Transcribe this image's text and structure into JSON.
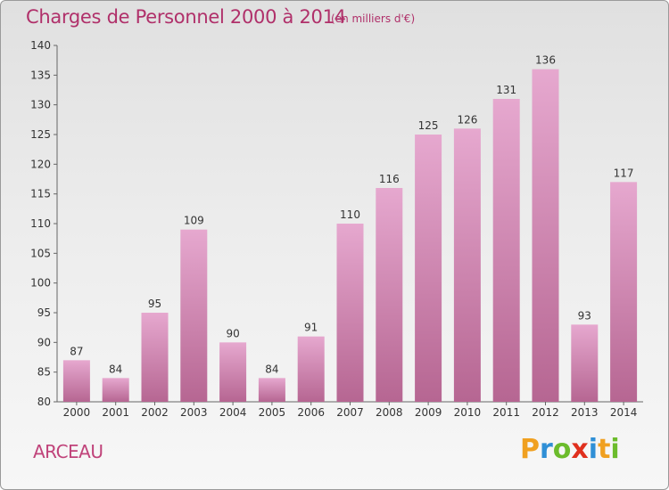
{
  "title": "Charges de Personnel 2000 à 2014",
  "unit_note": "(en milliers d'€)",
  "place": "ARCEAU",
  "logo": "Proxiti",
  "colors": {
    "title": "#b0306a",
    "bar_top": "#e6a8cf",
    "bar_bottom": "#b66692"
  },
  "chart_data": {
    "type": "bar",
    "title": "Charges de Personnel 2000 à 2014",
    "subtitle": "(en milliers d'€)",
    "categories": [
      "2000",
      "2001",
      "2002",
      "2003",
      "2004",
      "2005",
      "2006",
      "2007",
      "2008",
      "2009",
      "2010",
      "2011",
      "2012",
      "2013",
      "2014"
    ],
    "values": [
      87,
      84,
      95,
      109,
      90,
      84,
      91,
      110,
      116,
      125,
      126,
      131,
      136,
      93,
      117
    ],
    "data_labels": [
      "87",
      "84",
      "95",
      "109",
      "90",
      "84",
      "91",
      "110",
      "116",
      "125",
      "126",
      "131",
      "136",
      "93",
      "117"
    ],
    "ylim": [
      80,
      140
    ],
    "yticks": [
      "80",
      "85",
      "90",
      "95",
      "100",
      "105",
      "110",
      "115",
      "120",
      "125",
      "130",
      "135",
      "140"
    ],
    "grid": false,
    "xlabel": "",
    "ylabel": ""
  }
}
